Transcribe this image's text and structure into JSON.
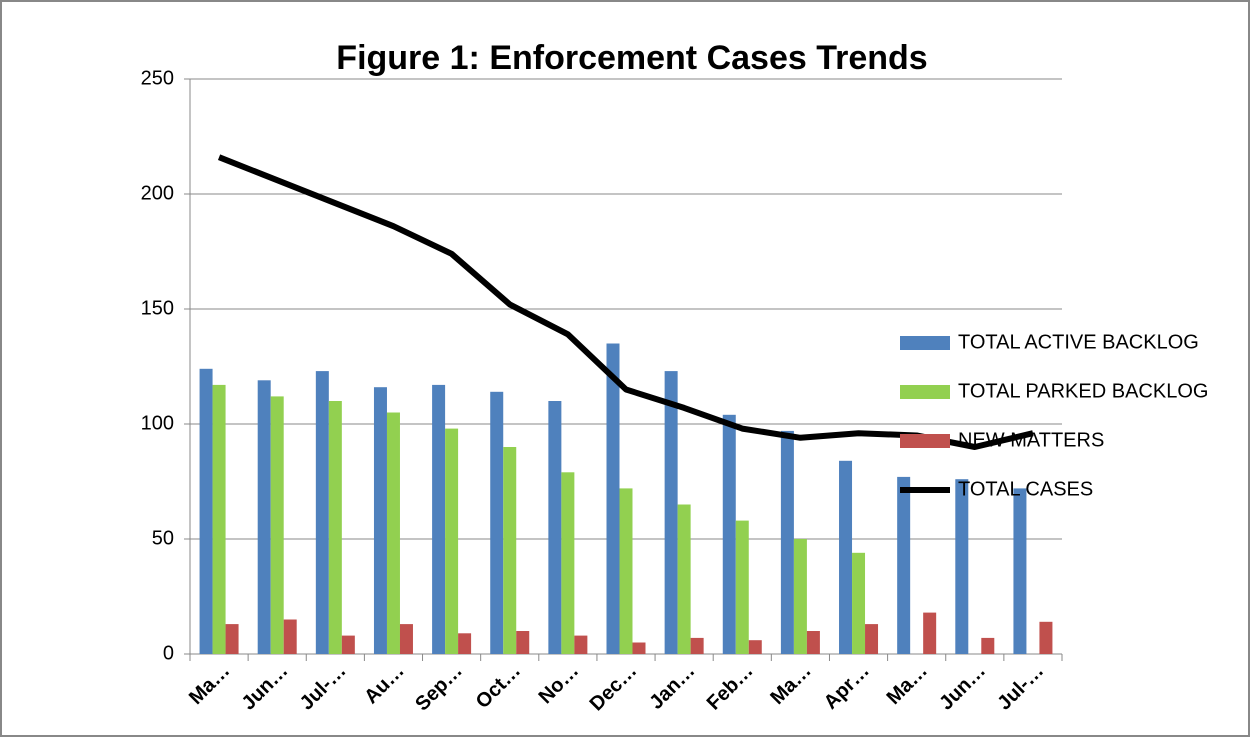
{
  "chart_data": {
    "type": "bar",
    "title": "Figure 1: Enforcement Cases Trends",
    "categories": [
      "Ma…",
      "Jun…",
      "Jul-…",
      "Au…",
      "Sep…",
      "Oct…",
      "No…",
      "Dec…",
      "Jan…",
      "Feb…",
      "Ma…",
      "Apr…",
      "Ma…",
      "Jun…",
      "Jul-…"
    ],
    "series": [
      {
        "name": "TOTAL ACTIVE BACKLOG",
        "type": "bar",
        "color": "#4f81bd",
        "values": [
          124,
          119,
          123,
          116,
          117,
          114,
          110,
          135,
          123,
          104,
          97,
          84,
          77,
          76,
          72
        ]
      },
      {
        "name": "TOTAL PARKED BACKLOG",
        "type": "bar",
        "color": "#92d050",
        "values": [
          117,
          112,
          110,
          105,
          98,
          90,
          79,
          72,
          65,
          58,
          50,
          44,
          null,
          null,
          null
        ]
      },
      {
        "name": "NEW MATTERS",
        "type": "bar",
        "color": "#c0504d",
        "values": [
          13,
          15,
          8,
          13,
          9,
          10,
          8,
          5,
          7,
          6,
          10,
          13,
          18,
          7,
          14
        ]
      },
      {
        "name": "TOTAL CASES",
        "type": "line",
        "color": "#000000",
        "values": [
          216,
          206,
          196,
          186,
          174,
          152,
          139,
          115,
          107,
          98,
          94,
          96,
          95,
          90,
          96
        ]
      }
    ],
    "ylim": [
      0,
      250
    ],
    "yticks": [
      0,
      50,
      100,
      150,
      200,
      250
    ],
    "grid": true,
    "legend": "right"
  }
}
